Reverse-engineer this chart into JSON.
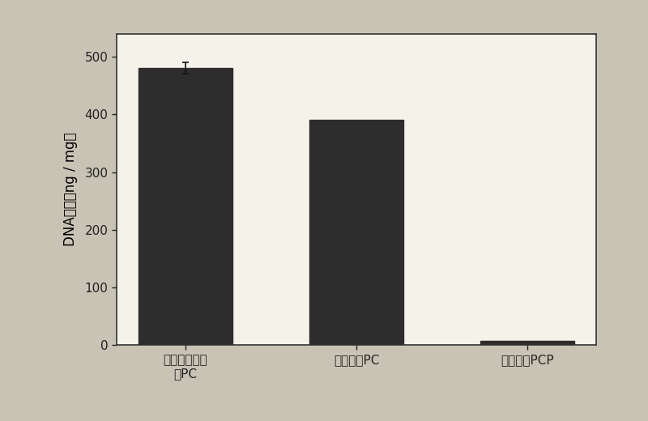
{
  "categories": [
    "去细胞化之前\n的PC",
    "去细胞化PC",
    "去细胞化PCP"
  ],
  "values": [
    480,
    390,
    8
  ],
  "error_bar_first": 10,
  "bar_color": "#2d2d2d",
  "bar_width": 0.55,
  "ylabel_parts": [
    "DNA含量（ng / mg）"
  ],
  "ylim": [
    0,
    540
  ],
  "yticks": [
    0,
    100,
    200,
    300,
    400,
    500
  ],
  "background_color": "#c8c3b5",
  "plot_bg_color": "#f5f2ea",
  "border_color": "#333333",
  "ylabel_fontsize": 12,
  "tick_fontsize": 11,
  "xlabel_fontsize": 11,
  "figsize": [
    8.0,
    5.2
  ],
  "dpi": 100
}
